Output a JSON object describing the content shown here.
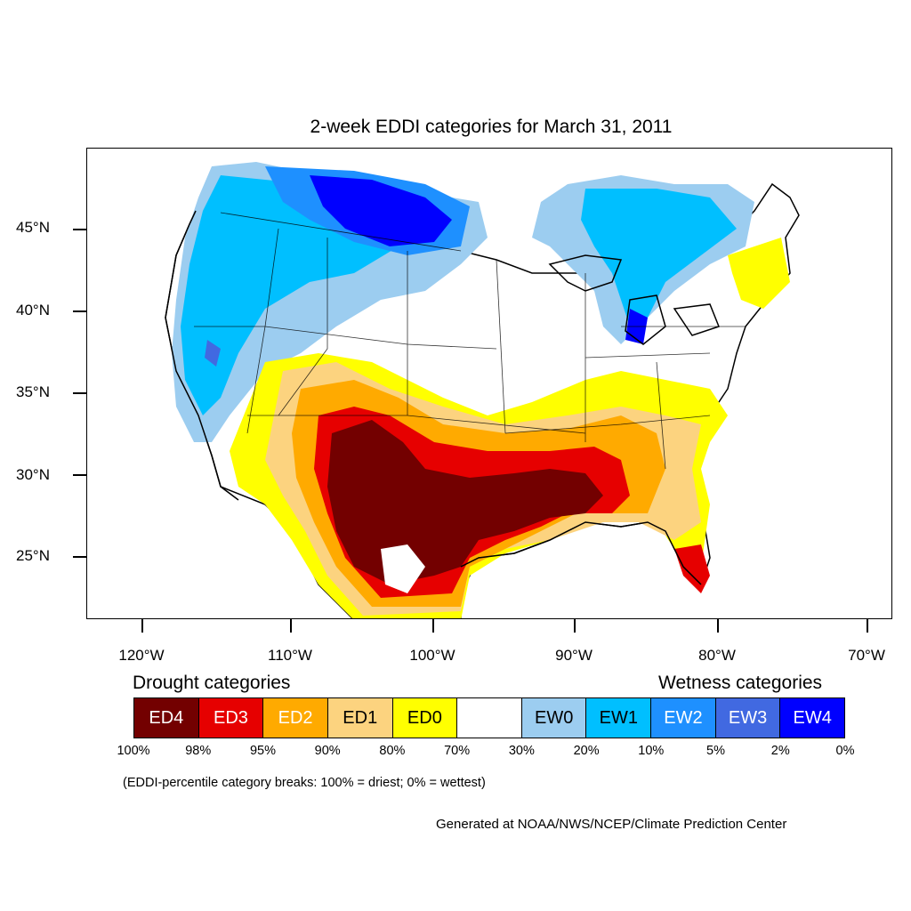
{
  "title": "2-week EDDI categories for March 31, 2011",
  "lat_labels": [
    "45°N",
    "40°N",
    "35°N",
    "30°N",
    "25°N"
  ],
  "lon_labels": [
    "120°W",
    "110°W",
    "100°W",
    "90°W",
    "80°W",
    "70°W"
  ],
  "legend": {
    "drought_heading": "Drought categories",
    "wetness_heading": "Wetness categories",
    "categories": [
      {
        "label": "ED4",
        "color": "#730000",
        "text_color": "#ffffff"
      },
      {
        "label": "ED3",
        "color": "#e60000",
        "text_color": "#ffffff"
      },
      {
        "label": "ED2",
        "color": "#ffaa00",
        "text_color": "#ffffff"
      },
      {
        "label": "ED1",
        "color": "#fcd37f",
        "text_color": "#000000"
      },
      {
        "label": "ED0",
        "color": "#ffff00",
        "text_color": "#000000"
      },
      {
        "label": "",
        "color": "#ffffff",
        "text_color": "#000000"
      },
      {
        "label": "EW0",
        "color": "#9ccdf0",
        "text_color": "#000000"
      },
      {
        "label": "EW1",
        "color": "#00bfff",
        "text_color": "#000000"
      },
      {
        "label": "EW2",
        "color": "#1e90ff",
        "text_color": "#ffffff"
      },
      {
        "label": "EW3",
        "color": "#4169e1",
        "text_color": "#ffffff"
      },
      {
        "label": "EW4",
        "color": "#0000ff",
        "text_color": "#ffffff"
      }
    ],
    "breaks": [
      "100%",
      "98%",
      "95%",
      "90%",
      "80%",
      "70%",
      "30%",
      "20%",
      "10%",
      "5%",
      "2%",
      "0%"
    ]
  },
  "note": "(EDDI-percentile category breaks: 100% = driest; 0% = wettest)",
  "credit": "Generated at NOAA/NWS/NCEP/Climate Prediction Center"
}
